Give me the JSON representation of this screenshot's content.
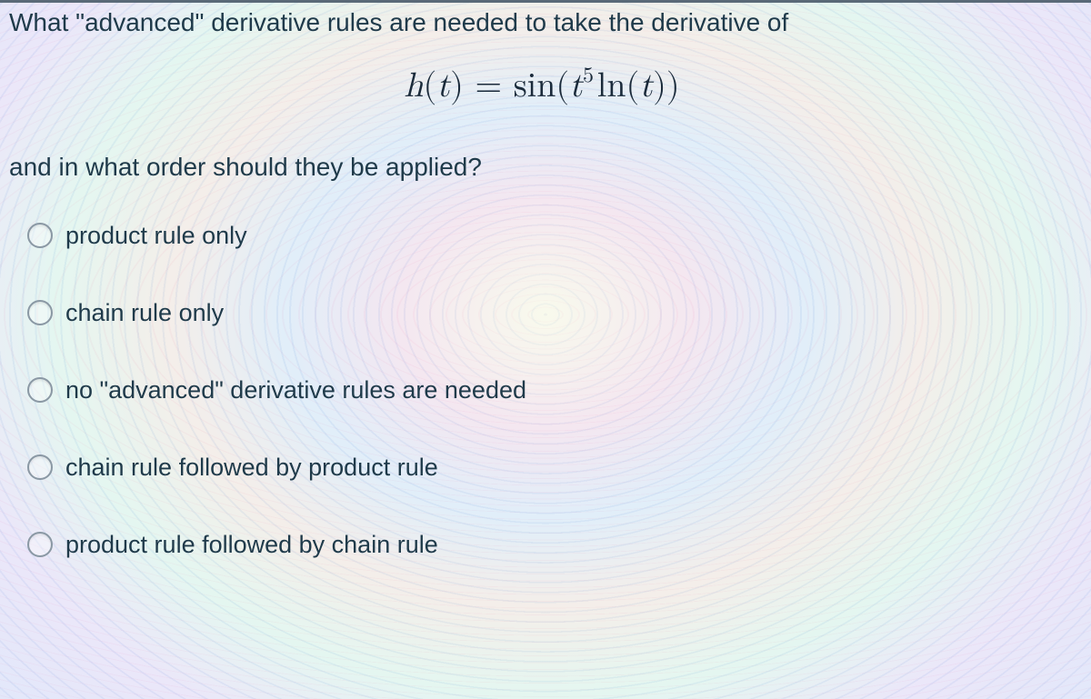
{
  "question": {
    "line1": "What \"advanced\" derivative rules are needed to take the derivative of",
    "line2": "and in what order should they be applied?"
  },
  "formula": {
    "lhs_var": "h",
    "lhs_arg": "t",
    "outer_fn": "sin",
    "inner_base": "t",
    "inner_exp": "5",
    "inner_fn": "ln",
    "inner_fn_arg": "t"
  },
  "options": [
    {
      "label": "product rule only"
    },
    {
      "label": "chain rule only"
    },
    {
      "label": "no \"advanced\" derivative rules are needed"
    },
    {
      "label": "chain rule followed by product rule"
    },
    {
      "label": "product rule followed by chain rule"
    }
  ],
  "colors": {
    "text": "#1f3a4a",
    "radio_border": "#8a98a4",
    "top_rule": "#5a6a78"
  }
}
